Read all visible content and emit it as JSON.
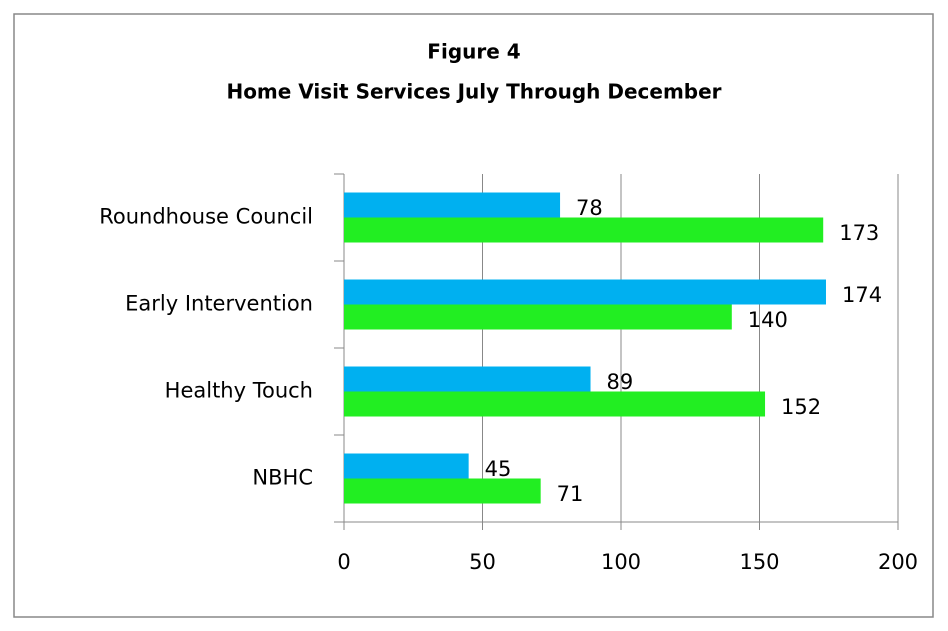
{
  "chart_data": {
    "type": "barh",
    "title": "Figure 4",
    "subtitle": "Home Visit Services July Through December",
    "categories": [
      "Roundhouse Council",
      "Early Intervention",
      "Healthy Touch",
      "NBHC"
    ],
    "series": [
      {
        "color": "#00b0f0",
        "values": [
          78,
          174,
          89,
          45
        ]
      },
      {
        "color": "#22ee22",
        "values": [
          173,
          140,
          152,
          71
        ]
      }
    ],
    "xlim": [
      0,
      200
    ],
    "xticks": [
      0,
      50,
      100,
      150,
      200
    ],
    "grid": true
  }
}
